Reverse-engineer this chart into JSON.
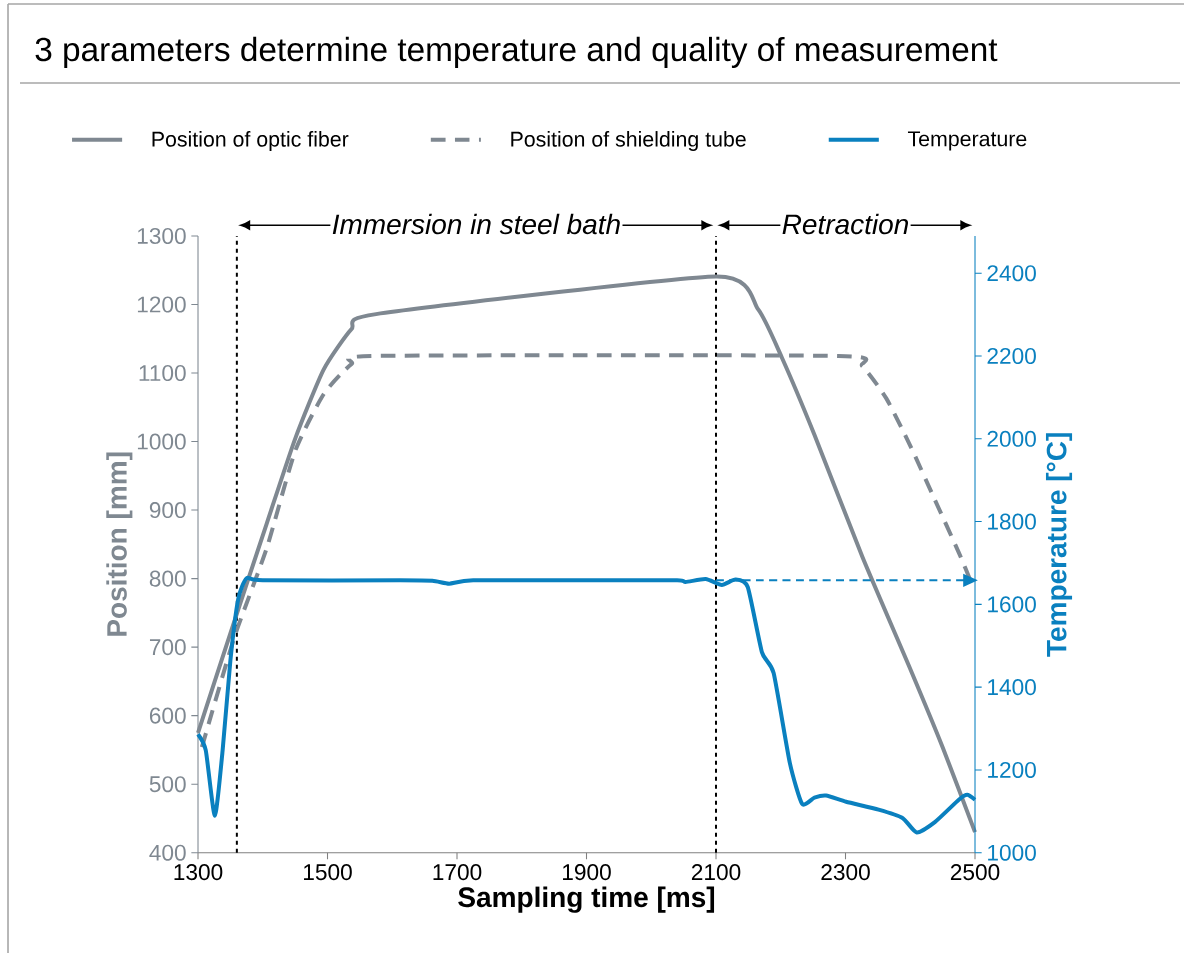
{
  "chart_data": {
    "type": "line",
    "title": "3 parameters determine temperature and quality of measurement",
    "xlabel": "Sampling time [ms]",
    "ylabel": "Position [mm]",
    "y2label": "Temperature [°C]",
    "annotations": [
      "Immersion in steel bath",
      "Retraction"
    ],
    "xlim": [
      1300,
      2500
    ],
    "xticks": [
      1300,
      1500,
      1700,
      1900,
      2100,
      2300,
      2500
    ],
    "ylim": [
      400,
      1300
    ],
    "yticks": [
      400,
      500,
      600,
      700,
      800,
      900,
      1000,
      1100,
      1200,
      1300
    ],
    "y2lim": [
      1000,
      2490
    ],
    "y2ticks": [
      1000,
      1200,
      1400,
      1600,
      1800,
      2000,
      2200,
      2400
    ],
    "legend": "top",
    "ref_lines": [
      {
        "axis": "x",
        "value": 1360,
        "color": "#000000",
        "line_style": "dashed"
      },
      {
        "axis": "x",
        "value": 2100,
        "color": "#000000",
        "line_style": "dashed"
      }
    ],
    "series": [
      {
        "name": "Position of optic fiber",
        "color": "#7f8891",
        "line_style": "solid",
        "x": [
          1300,
          1350,
          1406,
          1450,
          1494,
          1537,
          1575,
          2100,
          2165,
          2202,
          2252,
          2326,
          2401,
          2450,
          2500
        ],
        "values": [
          575,
          720,
          880,
          1004,
          1105,
          1164,
          1186,
          1241,
          1193,
          1122,
          1010,
          832,
          666,
          554,
          430
        ]
      },
      {
        "name": "Position of shielding tube",
        "color": "#7f8891",
        "line_style": "dashed",
        "x": [
          1306,
          1356,
          1406,
          1450,
          1494,
          1537,
          1575,
          2289,
          2326,
          2363,
          2401,
          2438,
          2475,
          2497
        ],
        "values": [
          554,
          714,
          844,
          986,
          1069,
          1113,
          1125,
          1125,
          1110,
          1063,
          992,
          915,
          838,
          788
        ]
      },
      {
        "name": "Temperature",
        "color": "#0a80bf",
        "line_style": "solid",
        "axis": "y2",
        "x": [
          1300,
          1312,
          1326,
          1338,
          1350,
          1362,
          1375,
          1400,
          1612,
          1662,
          1688,
          1725,
          1912,
          2040,
          2053,
          2084,
          2109,
          2130,
          2149,
          2171,
          2189,
          2214,
          2233,
          2252,
          2270,
          2301,
          2351,
          2388,
          2410,
          2438,
          2475,
          2488,
          2500
        ],
        "values": [
          1286,
          1247,
          1089,
          1247,
          1464,
          1612,
          1663,
          1658,
          1658,
          1657,
          1650,
          1658,
          1658,
          1658,
          1654,
          1661,
          1647,
          1660,
          1642,
          1484,
          1434,
          1217,
          1118,
          1133,
          1138,
          1123,
          1104,
          1084,
          1049,
          1074,
          1128,
          1140,
          1128
        ]
      },
      {
        "color": "#0a80bf",
        "line_style": "dashed",
        "axis": "y2",
        "x": [
          2100,
          2490
        ],
        "values": [
          1658,
          1658
        ]
      }
    ]
  }
}
